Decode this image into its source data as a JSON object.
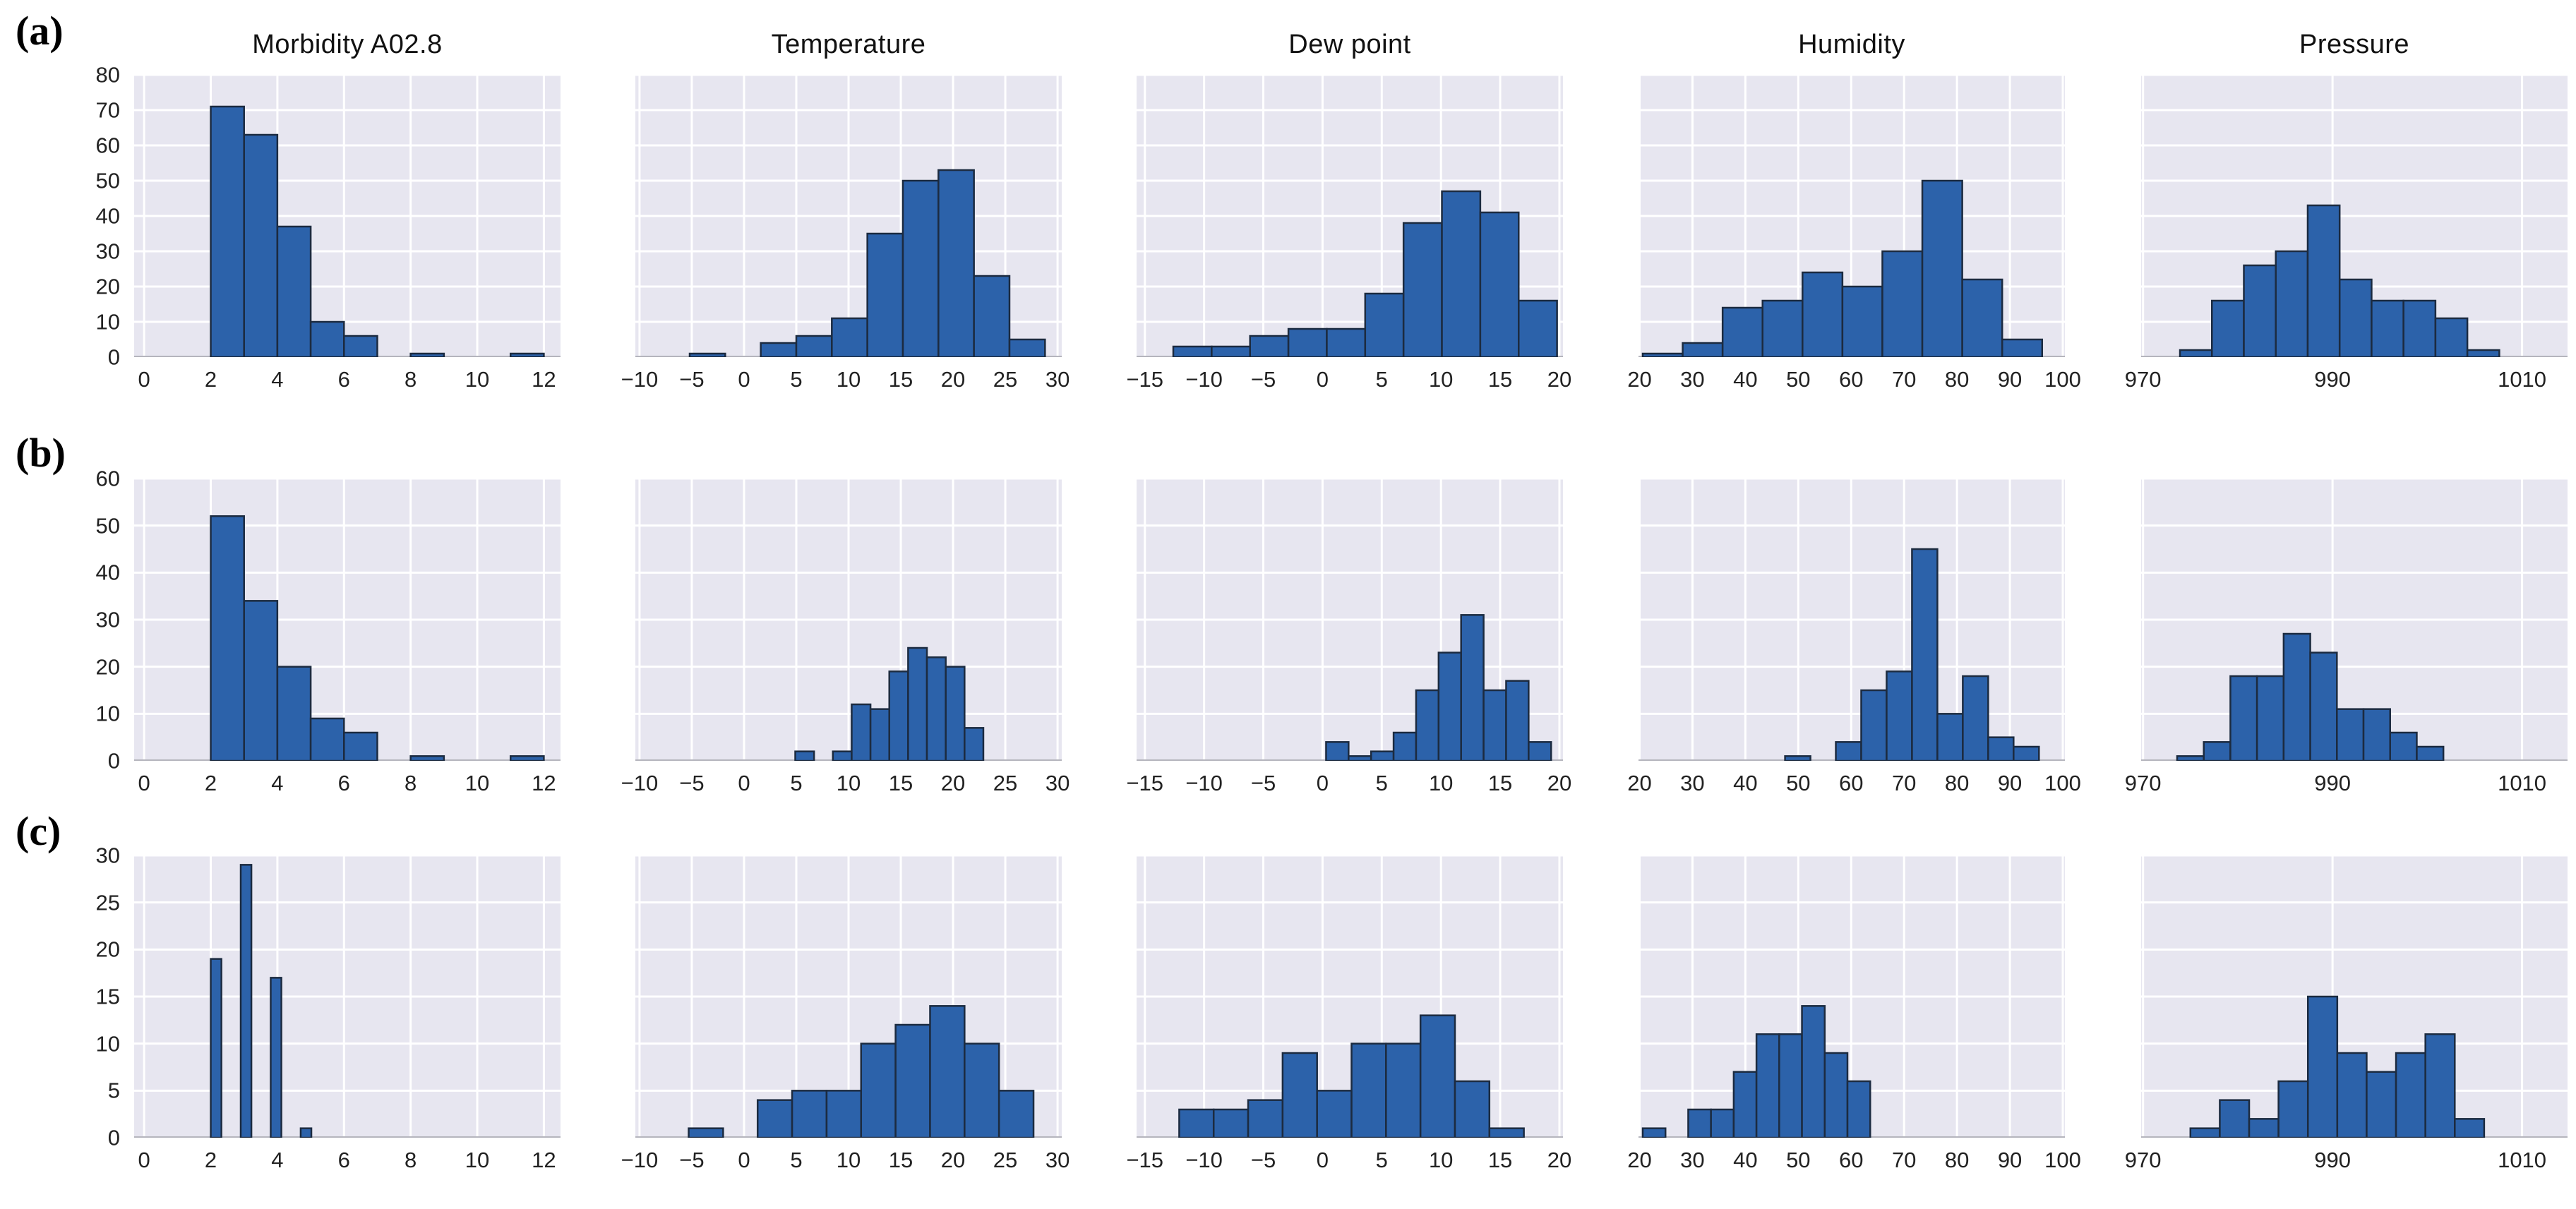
{
  "chart_data": {
    "type": "bar",
    "subtype": "histogram-grid",
    "description": "3x5 grid of histograms; rows (a),(b),(c) share per-row y axes, columns share per-column x axes",
    "colors": {
      "bar_fill": "#2c62aa",
      "bar_edge": "#1c2b40",
      "plot_background": "#e7e6f0",
      "gridline": "#ffffff",
      "baseline": "#b5b5bd",
      "text": "#222222"
    },
    "rows": [
      {
        "label": "(a)",
        "ylim": [
          0,
          80
        ],
        "yticks": [
          0,
          10,
          20,
          30,
          40,
          50,
          60,
          70,
          80
        ]
      },
      {
        "label": "(b)",
        "ylim": [
          0,
          60
        ],
        "yticks": [
          0,
          10,
          20,
          30,
          40,
          50,
          60
        ]
      },
      {
        "label": "(c)",
        "ylim": [
          0,
          30
        ],
        "yticks": [
          0,
          5,
          10,
          15,
          20,
          25,
          30
        ]
      }
    ],
    "columns": [
      {
        "title": "Morbidity A02.8",
        "xlim": [
          -0.3,
          12.5
        ],
        "xtick_vals": [
          0,
          2,
          4,
          6,
          8,
          10,
          12
        ],
        "xtick_labels": [
          "0",
          "2",
          "4",
          "6",
          "8",
          "10",
          "12"
        ]
      },
      {
        "title": "Temperature",
        "xlim": [
          -10.4,
          30.4
        ],
        "xtick_vals": [
          -10,
          -5,
          0,
          5,
          10,
          15,
          20,
          25,
          30
        ],
        "xtick_labels": [
          "−10",
          "−5",
          "0",
          "5",
          "10",
          "15",
          "20",
          "25",
          "30"
        ]
      },
      {
        "title": "Dew point",
        "xlim": [
          -15.7,
          20.3
        ],
        "xtick_vals": [
          -15,
          -10,
          -5,
          0,
          5,
          10,
          15,
          20
        ],
        "xtick_labels": [
          "−15",
          "−10",
          "−5",
          "0",
          "5",
          "10",
          "15",
          "20"
        ]
      },
      {
        "title": "Humidity",
        "xlim": [
          19.8,
          100.4
        ],
        "xtick_vals": [
          20,
          30,
          40,
          50,
          60,
          70,
          80,
          90,
          100
        ],
        "xtick_labels": [
          "20",
          "30",
          "40",
          "50",
          "60",
          "70",
          "80",
          "90",
          "100"
        ]
      },
      {
        "title": "Pressure",
        "xlim": [
          969.8,
          1014.8
        ],
        "xtick_vals": [
          970,
          990,
          1010
        ],
        "xtick_labels": [
          "970",
          "990",
          "1010"
        ]
      }
    ],
    "panels": [
      {
        "row": 0,
        "col": 0,
        "bars": [
          [
            2,
            3,
            71
          ],
          [
            3,
            4,
            63
          ],
          [
            4,
            5,
            37
          ],
          [
            5,
            6,
            10
          ],
          [
            6,
            7,
            6
          ],
          [
            8,
            9,
            1
          ],
          [
            11,
            12,
            1
          ]
        ]
      },
      {
        "row": 0,
        "col": 1,
        "bars": [
          [
            -5.2,
            -1.8,
            1
          ],
          [
            1.6,
            5,
            4
          ],
          [
            5,
            8.4,
            6
          ],
          [
            8.4,
            11.8,
            11
          ],
          [
            11.8,
            15.2,
            35
          ],
          [
            15.2,
            18.6,
            50
          ],
          [
            18.6,
            22,
            53
          ],
          [
            22,
            25.4,
            23
          ],
          [
            25.4,
            28.8,
            5
          ]
        ]
      },
      {
        "row": 0,
        "col": 2,
        "bars": [
          [
            -12.6,
            -9.36,
            3
          ],
          [
            -9.36,
            -6.12,
            3
          ],
          [
            -6.12,
            -2.88,
            6
          ],
          [
            -2.88,
            0.36,
            8
          ],
          [
            0.36,
            3.6,
            8
          ],
          [
            3.6,
            6.84,
            18
          ],
          [
            6.84,
            10.08,
            38
          ],
          [
            10.08,
            13.32,
            47
          ],
          [
            13.32,
            16.56,
            41
          ],
          [
            16.56,
            19.8,
            16
          ]
        ]
      },
      {
        "row": 0,
        "col": 3,
        "bars": [
          [
            20.6,
            28.15,
            1
          ],
          [
            28.15,
            35.7,
            4
          ],
          [
            35.7,
            43.25,
            14
          ],
          [
            43.25,
            50.8,
            16
          ],
          [
            50.8,
            58.35,
            24
          ],
          [
            58.35,
            65.9,
            20
          ],
          [
            65.9,
            73.45,
            30
          ],
          [
            73.45,
            81,
            50
          ],
          [
            81,
            88.55,
            22
          ],
          [
            88.55,
            96.1,
            5
          ]
        ]
      },
      {
        "row": 0,
        "col": 4,
        "bars": [
          [
            973.9,
            977.27,
            2
          ],
          [
            977.27,
            980.64,
            16
          ],
          [
            980.64,
            984.01,
            26
          ],
          [
            984.01,
            987.38,
            30
          ],
          [
            987.38,
            990.75,
            43
          ],
          [
            990.75,
            994.12,
            22
          ],
          [
            994.12,
            997.49,
            16
          ],
          [
            997.49,
            1000.86,
            16
          ],
          [
            1000.86,
            1004.23,
            11
          ],
          [
            1004.23,
            1007.6,
            2
          ]
        ]
      },
      {
        "row": 1,
        "col": 0,
        "bars": [
          [
            2,
            3,
            52
          ],
          [
            3,
            4,
            34
          ],
          [
            4,
            5,
            20
          ],
          [
            5,
            6,
            9
          ],
          [
            6,
            7,
            6
          ],
          [
            8,
            9,
            1
          ],
          [
            11,
            12,
            1
          ]
        ]
      },
      {
        "row": 1,
        "col": 1,
        "bars": [
          [
            4.9,
            6.7,
            2
          ],
          [
            8.5,
            10.3,
            2
          ],
          [
            10.3,
            12.1,
            12
          ],
          [
            12.1,
            13.9,
            11
          ],
          [
            13.9,
            15.7,
            19
          ],
          [
            15.7,
            17.5,
            24
          ],
          [
            17.5,
            19.3,
            22
          ],
          [
            19.3,
            21.1,
            20
          ],
          [
            21.1,
            22.9,
            7
          ]
        ]
      },
      {
        "row": 1,
        "col": 2,
        "bars": [
          [
            0.3,
            2.2,
            4
          ],
          [
            2.2,
            4.1,
            1
          ],
          [
            4.1,
            6,
            2
          ],
          [
            6,
            7.9,
            6
          ],
          [
            7.9,
            9.8,
            15
          ],
          [
            9.8,
            11.7,
            23
          ],
          [
            11.7,
            13.6,
            31
          ],
          [
            13.6,
            15.5,
            15
          ],
          [
            15.5,
            17.4,
            17
          ],
          [
            17.4,
            19.3,
            4
          ]
        ]
      },
      {
        "row": 1,
        "col": 3,
        "bars": [
          [
            47.5,
            52.3,
            1
          ],
          [
            57.1,
            61.9,
            4
          ],
          [
            61.9,
            66.7,
            15
          ],
          [
            66.7,
            71.5,
            19
          ],
          [
            71.5,
            76.3,
            45
          ],
          [
            76.3,
            81.1,
            10
          ],
          [
            81.1,
            85.9,
            18
          ],
          [
            85.9,
            90.7,
            5
          ],
          [
            90.7,
            95.5,
            3
          ]
        ]
      },
      {
        "row": 1,
        "col": 4,
        "bars": [
          [
            973.6,
            976.41,
            1
          ],
          [
            976.41,
            979.22,
            4
          ],
          [
            979.22,
            982.03,
            18
          ],
          [
            982.03,
            984.84,
            18
          ],
          [
            984.84,
            987.65,
            27
          ],
          [
            987.65,
            990.46,
            23
          ],
          [
            990.46,
            993.27,
            11
          ],
          [
            993.27,
            996.08,
            11
          ],
          [
            996.08,
            998.89,
            6
          ],
          [
            998.89,
            1001.7,
            3
          ]
        ]
      },
      {
        "row": 2,
        "col": 0,
        "bars": [
          [
            2,
            2.32,
            19
          ],
          [
            2.9,
            3.22,
            29
          ],
          [
            3.8,
            4.12,
            17
          ],
          [
            4.7,
            5.02,
            1
          ]
        ]
      },
      {
        "row": 2,
        "col": 1,
        "bars": [
          [
            -5.3,
            -2,
            1
          ],
          [
            1.3,
            4.6,
            4
          ],
          [
            4.6,
            7.9,
            5
          ],
          [
            7.9,
            11.2,
            5
          ],
          [
            11.2,
            14.5,
            10
          ],
          [
            14.5,
            17.8,
            12
          ],
          [
            17.8,
            21.1,
            14
          ],
          [
            21.1,
            24.4,
            10
          ],
          [
            24.4,
            27.7,
            5
          ]
        ]
      },
      {
        "row": 2,
        "col": 2,
        "bars": [
          [
            -12.1,
            -9.19,
            3
          ],
          [
            -9.19,
            -6.28,
            3
          ],
          [
            -6.28,
            -3.37,
            4
          ],
          [
            -3.37,
            -0.46,
            9
          ],
          [
            -0.46,
            2.45,
            5
          ],
          [
            2.45,
            5.36,
            10
          ],
          [
            5.36,
            8.27,
            10
          ],
          [
            8.27,
            11.18,
            13
          ],
          [
            11.18,
            14.09,
            6
          ],
          [
            14.09,
            17,
            1
          ]
        ]
      },
      {
        "row": 2,
        "col": 3,
        "bars": [
          [
            20.6,
            24.9,
            1
          ],
          [
            29.2,
            33.5,
            3
          ],
          [
            33.5,
            37.8,
            3
          ],
          [
            37.8,
            42.1,
            7
          ],
          [
            42.1,
            46.4,
            11
          ],
          [
            46.4,
            50.7,
            11
          ],
          [
            50.7,
            55,
            14
          ],
          [
            55,
            59.3,
            9
          ],
          [
            59.3,
            63.6,
            6
          ]
        ]
      },
      {
        "row": 2,
        "col": 4,
        "bars": [
          [
            975,
            978.1,
            1
          ],
          [
            978.1,
            981.2,
            4
          ],
          [
            981.2,
            984.3,
            2
          ],
          [
            984.3,
            987.4,
            6
          ],
          [
            987.4,
            990.5,
            15
          ],
          [
            990.5,
            993.6,
            9
          ],
          [
            993.6,
            996.7,
            7
          ],
          [
            996.7,
            999.8,
            9
          ],
          [
            999.8,
            1002.9,
            11
          ],
          [
            1002.9,
            1006,
            2
          ]
        ]
      }
    ],
    "legend": null,
    "grid": true
  }
}
